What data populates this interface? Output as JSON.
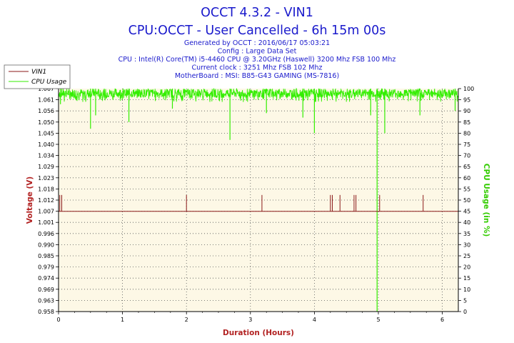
{
  "title": "OCCT 4.3.2 - VIN1",
  "subtitle": "CPU:OCCT - User Cancelled - 6h 15m 00s",
  "info_lines": [
    "Generated by OCCT : 2016/06/17 05:03:21",
    "Config : Large Data Set",
    "CPU : Intel(R) Core(TM) i5-4460 CPU @ 3.20GHz (Haswell) 3200 Mhz FSB 100 Mhz",
    "Current clock : 3251 Mhz FSB 102 Mhz",
    "MotherBoard : MSI: B85-G43 GAMING (MS-7816)"
  ],
  "colors": {
    "voltage": "#8b1a1a",
    "cpu": "#33ee00",
    "title": "#1a1acc",
    "plot_bg": "#fdf8e6",
    "grid": "#555555"
  },
  "chart_data": {
    "type": "line",
    "xlabel": "Duration (Hours)",
    "ylabel_left": "Voltage (V)",
    "ylabel_right": "CPU Usage (in %)",
    "xlim": [
      0,
      6.25
    ],
    "ylim_left": [
      0.958,
      1.067
    ],
    "ylim_right": [
      0,
      100
    ],
    "x_ticks": [
      "0",
      "1",
      "2",
      "3",
      "4",
      "5",
      "6"
    ],
    "y_left_ticks": [
      "0.958",
      "0.963",
      "0.969",
      "0.974",
      "0.979",
      "0.985",
      "0.990",
      "0.996",
      "1.001",
      "1.007",
      "1.012",
      "1.018",
      "1.023",
      "1.029",
      "1.034",
      "1.040",
      "1.045",
      "1.050",
      "1.056",
      "1.061",
      "1.067"
    ],
    "y_right_ticks": [
      "0",
      "5",
      "10",
      "15",
      "20",
      "25",
      "30",
      "35",
      "40",
      "45",
      "50",
      "55",
      "60",
      "65",
      "70",
      "75",
      "80",
      "85",
      "90",
      "95",
      "100"
    ],
    "grid": true,
    "legend_position": "top-left",
    "series": [
      {
        "name": "VIN1",
        "axis": "left",
        "baseline": 1.007,
        "spikes": [
          {
            "x": 0.02,
            "y": 1.015
          },
          {
            "x": 0.05,
            "y": 1.015
          },
          {
            "x": 2.0,
            "y": 1.015
          },
          {
            "x": 3.18,
            "y": 1.015
          },
          {
            "x": 4.25,
            "y": 1.015
          },
          {
            "x": 4.28,
            "y": 1.015
          },
          {
            "x": 4.4,
            "y": 1.015
          },
          {
            "x": 4.62,
            "y": 1.015
          },
          {
            "x": 4.65,
            "y": 1.015
          },
          {
            "x": 5.02,
            "y": 1.015
          },
          {
            "x": 5.7,
            "y": 1.015
          }
        ]
      },
      {
        "name": "CPU Usage",
        "axis": "right",
        "band": [
          96,
          100
        ],
        "dips": [
          {
            "x": 0.03,
            "y": 93
          },
          {
            "x": 0.5,
            "y": 82
          },
          {
            "x": 0.58,
            "y": 88
          },
          {
            "x": 1.1,
            "y": 85
          },
          {
            "x": 1.78,
            "y": 91
          },
          {
            "x": 2.68,
            "y": 77
          },
          {
            "x": 3.25,
            "y": 89
          },
          {
            "x": 3.82,
            "y": 87
          },
          {
            "x": 4.0,
            "y": 80
          },
          {
            "x": 4.88,
            "y": 88
          },
          {
            "x": 4.98,
            "y": 0
          },
          {
            "x": 5.1,
            "y": 80
          },
          {
            "x": 5.65,
            "y": 88
          },
          {
            "x": 6.2,
            "y": 90
          }
        ]
      }
    ]
  }
}
